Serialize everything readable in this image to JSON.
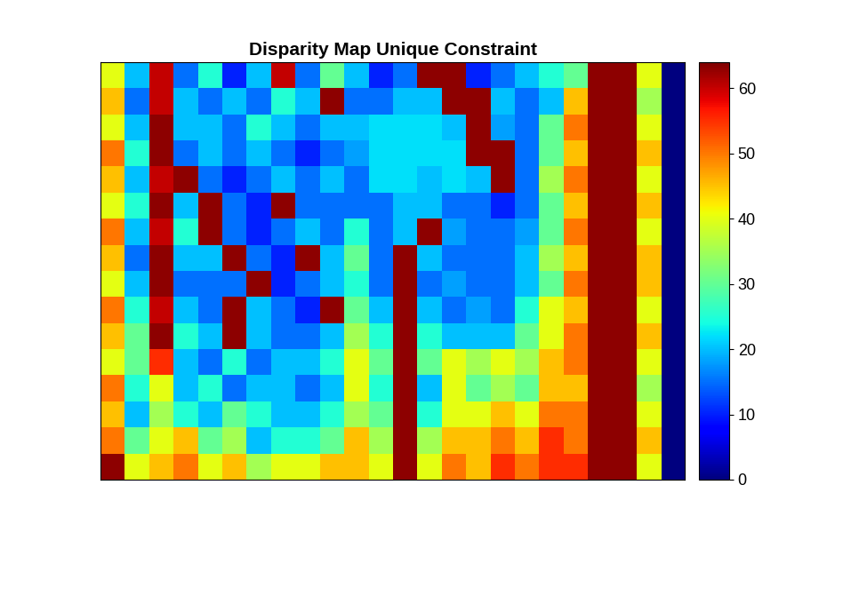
{
  "chart_data": {
    "type": "heatmap",
    "title": "Disparity Map Unique Constraint",
    "color": "jet",
    "tick_labels": false,
    "colorbar_range": [
      0,
      64
    ],
    "colorbar_ticks": [
      0,
      10,
      20,
      30,
      40,
      50,
      60
    ],
    "cells": [
      [
        40,
        20,
        60,
        15,
        25,
        10,
        20,
        60,
        15,
        30,
        20,
        10,
        15,
        63,
        63,
        10,
        15,
        20,
        25,
        30,
        63,
        63,
        40,
        0
      ],
      [
        45,
        15,
        60,
        20,
        15,
        20,
        15,
        25,
        20,
        63,
        15,
        15,
        20,
        20,
        63,
        63,
        20,
        15,
        20,
        45,
        63,
        63,
        35,
        0
      ],
      [
        40,
        20,
        63,
        20,
        20,
        15,
        25,
        20,
        15,
        20,
        20,
        22,
        22,
        22,
        20,
        63,
        18,
        15,
        30,
        50,
        63,
        63,
        40,
        0
      ],
      [
        50,
        25,
        63,
        15,
        20,
        15,
        20,
        15,
        10,
        15,
        18,
        22,
        22,
        22,
        22,
        63,
        63,
        15,
        30,
        45,
        63,
        63,
        45,
        0
      ],
      [
        45,
        20,
        60,
        63,
        15,
        10,
        15,
        20,
        15,
        20,
        15,
        22,
        22,
        20,
        22,
        20,
        63,
        15,
        35,
        50,
        63,
        63,
        40,
        0
      ],
      [
        40,
        25,
        63,
        20,
        63,
        15,
        10,
        63,
        15,
        15,
        15,
        15,
        20,
        20,
        15,
        15,
        10,
        15,
        30,
        45,
        63,
        63,
        45,
        0
      ],
      [
        50,
        20,
        60,
        25,
        63,
        15,
        10,
        15,
        20,
        15,
        25,
        15,
        20,
        63,
        18,
        15,
        15,
        18,
        30,
        50,
        63,
        63,
        40,
        0
      ],
      [
        45,
        15,
        63,
        20,
        20,
        63,
        15,
        10,
        63,
        20,
        30,
        15,
        63,
        20,
        15,
        15,
        15,
        20,
        35,
        45,
        63,
        63,
        45,
        0
      ],
      [
        40,
        20,
        63,
        15,
        15,
        15,
        63,
        10,
        15,
        20,
        25,
        15,
        63,
        15,
        18,
        15,
        15,
        20,
        30,
        50,
        63,
        63,
        45,
        0
      ],
      [
        50,
        25,
        60,
        20,
        15,
        63,
        20,
        15,
        10,
        63,
        30,
        20,
        63,
        20,
        15,
        18,
        15,
        25,
        40,
        45,
        63,
        63,
        40,
        0
      ],
      [
        45,
        30,
        63,
        25,
        20,
        63,
        20,
        15,
        15,
        20,
        35,
        25,
        63,
        25,
        20,
        20,
        20,
        30,
        40,
        50,
        63,
        63,
        45,
        0
      ],
      [
        40,
        30,
        55,
        20,
        15,
        25,
        15,
        20,
        20,
        25,
        40,
        30,
        63,
        30,
        40,
        35,
        40,
        35,
        45,
        50,
        63,
        63,
        40,
        0
      ],
      [
        50,
        25,
        40,
        20,
        25,
        15,
        20,
        20,
        15,
        20,
        40,
        25,
        63,
        20,
        40,
        30,
        35,
        30,
        45,
        45,
        63,
        63,
        35,
        0
      ],
      [
        45,
        20,
        35,
        25,
        20,
        30,
        25,
        20,
        20,
        25,
        35,
        30,
        63,
        25,
        40,
        40,
        45,
        40,
        50,
        50,
        63,
        63,
        40,
        0
      ],
      [
        50,
        30,
        40,
        45,
        30,
        35,
        20,
        25,
        25,
        30,
        45,
        35,
        63,
        35,
        45,
        45,
        50,
        45,
        55,
        50,
        63,
        63,
        45,
        0
      ],
      [
        63,
        40,
        45,
        50,
        40,
        45,
        35,
        40,
        40,
        45,
        45,
        40,
        63,
        40,
        50,
        45,
        55,
        50,
        55,
        55,
        63,
        63,
        40,
        0
      ]
    ]
  }
}
